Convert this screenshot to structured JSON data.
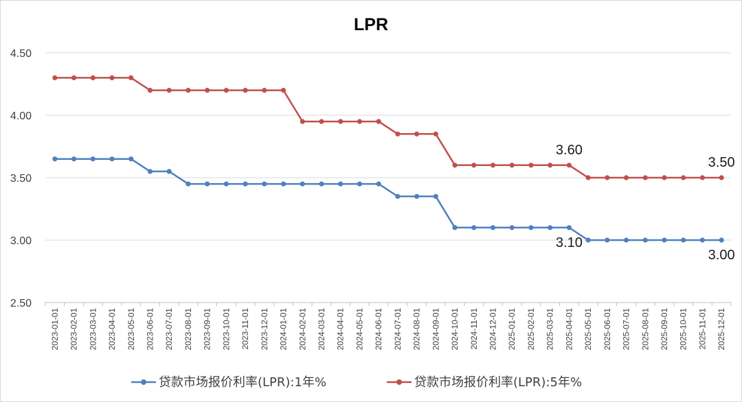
{
  "chart_data": {
    "type": "line",
    "title": "LPR",
    "xlabel": "",
    "ylabel": "",
    "ylim": [
      2.5,
      4.5
    ],
    "yticks": [
      "2.50",
      "3.00",
      "3.50",
      "4.00",
      "4.50"
    ],
    "grid": true,
    "legend_position": "bottom",
    "categories": [
      "2023-01-01",
      "2023-02-01",
      "2023-03-01",
      "2023-04-01",
      "2023-05-01",
      "2023-06-01",
      "2023-07-01",
      "2023-08-01",
      "2023-09-01",
      "2023-10-01",
      "2023-11-01",
      "2023-12-01",
      "2024-01-01",
      "2024-02-01",
      "2024-03-01",
      "2024-04-01",
      "2024-05-01",
      "2024-06-01",
      "2024-07-01",
      "2024-08-01",
      "2024-09-01",
      "2024-10-01",
      "2024-11-01",
      "2024-12-01",
      "2025-01-01",
      "2025-02-01",
      "2025-03-01",
      "2025-04-01",
      "2025-05-01",
      "2025-06-01",
      "2025-07-01",
      "2025-08-01",
      "2025-09-01",
      "2025-10-01",
      "2025-11-01",
      "2025-12-01"
    ],
    "series": [
      {
        "name": "贷款市场报价利率(LPR):1年%",
        "color": "#4f81bd",
        "values": [
          3.65,
          3.65,
          3.65,
          3.65,
          3.65,
          3.55,
          3.55,
          3.45,
          3.45,
          3.45,
          3.45,
          3.45,
          3.45,
          3.45,
          3.45,
          3.45,
          3.45,
          3.45,
          3.35,
          3.35,
          3.35,
          3.1,
          3.1,
          3.1,
          3.1,
          3.1,
          3.1,
          3.1,
          3.0,
          3.0,
          3.0,
          3.0,
          3.0,
          3.0,
          3.0,
          3.0
        ]
      },
      {
        "name": "贷款市场报价利率(LPR):5年%",
        "color": "#c0504d",
        "values": [
          4.3,
          4.3,
          4.3,
          4.3,
          4.3,
          4.2,
          4.2,
          4.2,
          4.2,
          4.2,
          4.2,
          4.2,
          4.2,
          3.95,
          3.95,
          3.95,
          3.95,
          3.95,
          3.85,
          3.85,
          3.85,
          3.6,
          3.6,
          3.6,
          3.6,
          3.6,
          3.6,
          3.6,
          3.5,
          3.5,
          3.5,
          3.5,
          3.5,
          3.5,
          3.5,
          3.5
        ]
      }
    ],
    "annotations": [
      {
        "text": "3.60",
        "series": 1,
        "index": 27,
        "place": "above"
      },
      {
        "text": "3.50",
        "series": 1,
        "index": 35,
        "place": "above"
      },
      {
        "text": "3.10",
        "series": 0,
        "index": 27,
        "place": "below"
      },
      {
        "text": "3.00",
        "series": 0,
        "index": 35,
        "place": "below"
      }
    ]
  }
}
